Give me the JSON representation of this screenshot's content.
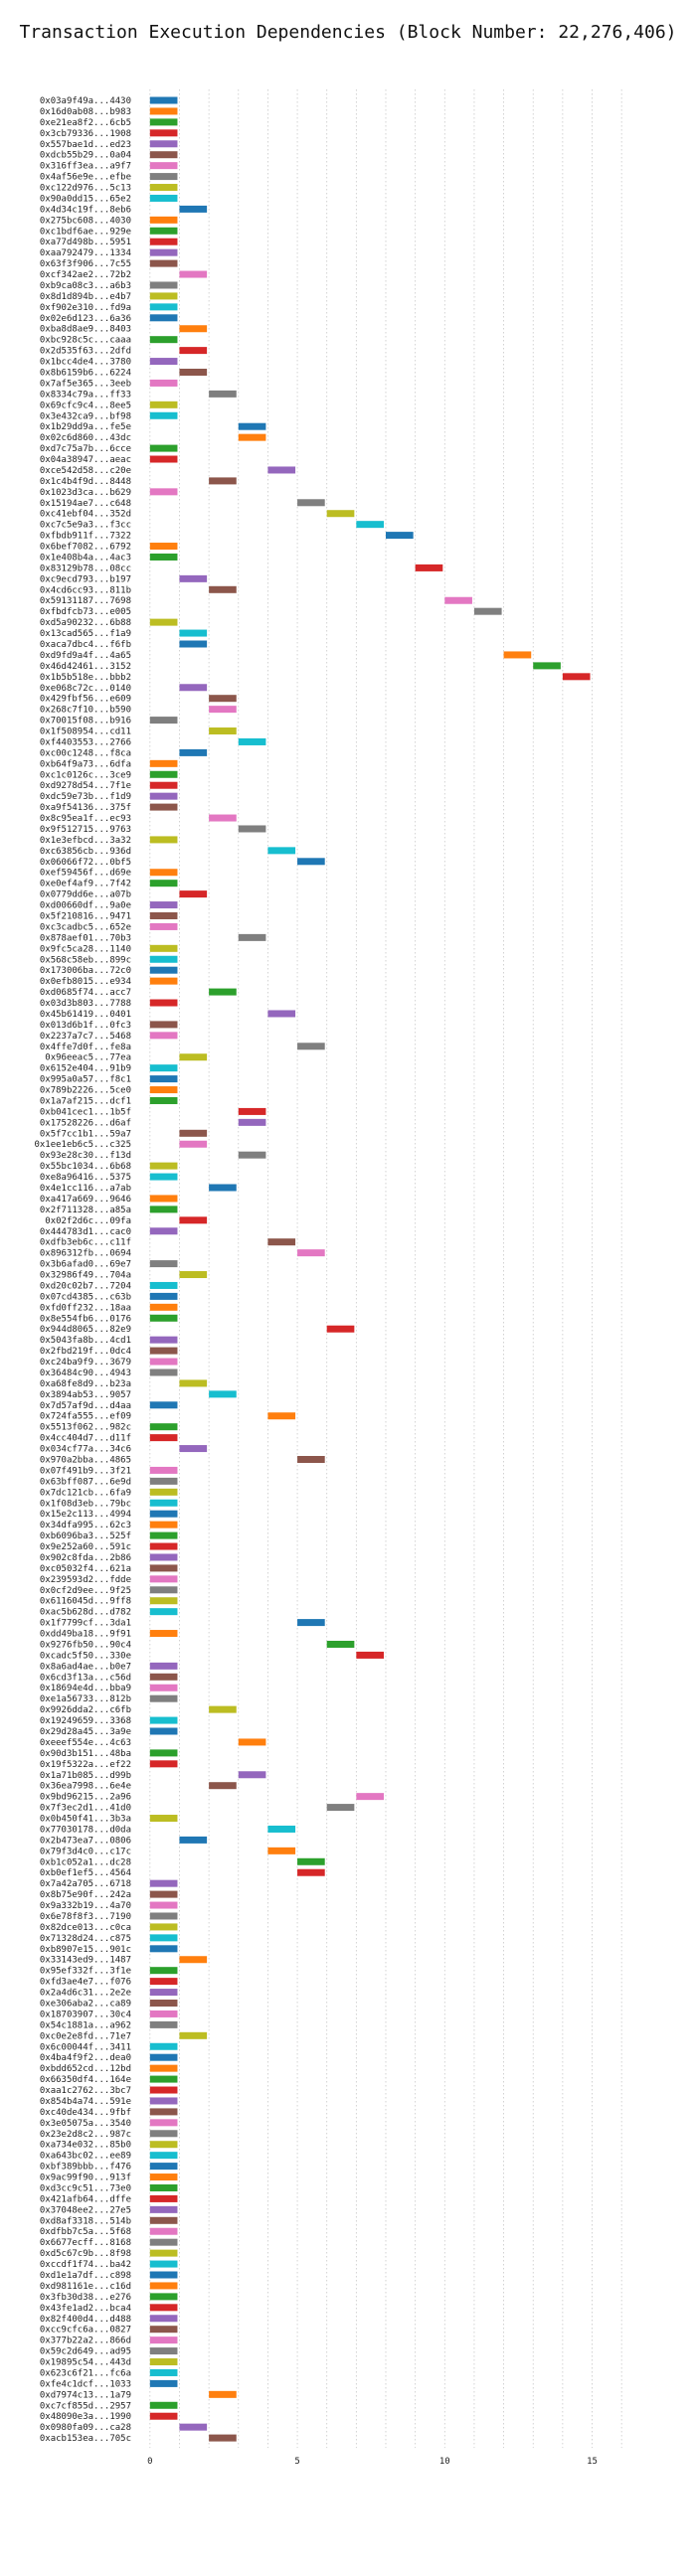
{
  "chart_data": {
    "type": "bar",
    "orientation": "horizontal",
    "title": "Transaction Execution Dependencies (Block Number: 22,276,406)",
    "xlabel": "",
    "ylabel": "",
    "xlim": [
      -0.5,
      16.5
    ],
    "xticks": [
      0,
      5,
      10,
      15
    ],
    "grid": "vertical dotted",
    "bar_width": 1,
    "palette": [
      "#1f77b4",
      "#ff7f0e",
      "#2ca02c",
      "#d62728",
      "#9467bd",
      "#8c564b",
      "#e377c2",
      "#7f7f7f",
      "#bcbd22",
      "#17becf"
    ],
    "transactions": [
      {
        "hash": "0x03a9f49a...4430",
        "start": 0
      },
      {
        "hash": "0x16d0ab08...b983",
        "start": 0
      },
      {
        "hash": "0xe21ea8f2...6cb5",
        "start": 0
      },
      {
        "hash": "0x3cb79336...1908",
        "start": 0
      },
      {
        "hash": "0x557bae1d...ed23",
        "start": 0
      },
      {
        "hash": "0xdcb55b29...0a04",
        "start": 0
      },
      {
        "hash": "0x316ff3ea...a9f7",
        "start": 0
      },
      {
        "hash": "0x4af56e9e...efbe",
        "start": 0
      },
      {
        "hash": "0xc122d976...5c13",
        "start": 0
      },
      {
        "hash": "0x90a0dd15...65e2",
        "start": 0
      },
      {
        "hash": "0x4d34c19f...8eb6",
        "start": 1
      },
      {
        "hash": "0x275bc608...4030",
        "start": 0
      },
      {
        "hash": "0xc1bdf6ae...929e",
        "start": 0
      },
      {
        "hash": "0xa77d498b...5951",
        "start": 0
      },
      {
        "hash": "0xaa792479...1334",
        "start": 0
      },
      {
        "hash": "0x63f3f906...7c55",
        "start": 0
      },
      {
        "hash": "0xcf342ae2...72b2",
        "start": 1
      },
      {
        "hash": "0xb9ca08c3...a6b3",
        "start": 0
      },
      {
        "hash": "0x8d1d894b...e4b7",
        "start": 0
      },
      {
        "hash": "0xf902e310...fd9a",
        "start": 0
      },
      {
        "hash": "0x02e6d123...6a36",
        "start": 0
      },
      {
        "hash": "0xba8d8ae9...8403",
        "start": 1
      },
      {
        "hash": "0xbc928c5c...caaa",
        "start": 0
      },
      {
        "hash": "0x2d535f63...2dfd",
        "start": 1
      },
      {
        "hash": "0x1bcc4de4...3780",
        "start": 0
      },
      {
        "hash": "0x8b6159b6...6224",
        "start": 1
      },
      {
        "hash": "0x7af5e365...3eeb",
        "start": 0
      },
      {
        "hash": "0x8334c79a...ff33",
        "start": 2
      },
      {
        "hash": "0x69cfc9c4...8ee5",
        "start": 0
      },
      {
        "hash": "0x3e432ca9...bf98",
        "start": 0
      },
      {
        "hash": "0x1b29dd9a...fe5e",
        "start": 3
      },
      {
        "hash": "0x02c6d860...43dc",
        "start": 3
      },
      {
        "hash": "0xd7c75a7b...6cce",
        "start": 0
      },
      {
        "hash": "0x04a38947...aeac",
        "start": 0
      },
      {
        "hash": "0xce542d58...c20e",
        "start": 4
      },
      {
        "hash": "0x1c4b4f9d...8448",
        "start": 2
      },
      {
        "hash": "0x1023d3ca...b629",
        "start": 0
      },
      {
        "hash": "0x15194ae7...c648",
        "start": 5
      },
      {
        "hash": "0xc41ebf04...352d",
        "start": 6
      },
      {
        "hash": "0xc7c5e9a3...f3cc",
        "start": 7
      },
      {
        "hash": "0xfbdb911f...7322",
        "start": 8
      },
      {
        "hash": "0x6bef7082...6792",
        "start": 0
      },
      {
        "hash": "0x1e408b4a...4ac3",
        "start": 0
      },
      {
        "hash": "0x83129b78...08cc",
        "start": 9
      },
      {
        "hash": "0xc9ecd793...b197",
        "start": 1
      },
      {
        "hash": "0x4cd6cc93...811b",
        "start": 2
      },
      {
        "hash": "0x59131187...7698",
        "start": 10
      },
      {
        "hash": "0xfbdfcb73...e005",
        "start": 11
      },
      {
        "hash": "0xd5a90232...6b88",
        "start": 0
      },
      {
        "hash": "0x13cad565...f1a9",
        "start": 1
      },
      {
        "hash": "0xaca7dbc4...f6fb",
        "start": 1
      },
      {
        "hash": "0xd9fd9a4f...4a65",
        "start": 12
      },
      {
        "hash": "0x46d42461...3152",
        "start": 13
      },
      {
        "hash": "0x1b5b518e...bbb2",
        "start": 14
      },
      {
        "hash": "0xe068c72c...0140",
        "start": 1
      },
      {
        "hash": "0x429fbf56...e609",
        "start": 2
      },
      {
        "hash": "0x268c7f10...b590",
        "start": 2
      },
      {
        "hash": "0x70015f08...b916",
        "start": 0
      },
      {
        "hash": "0x1f508954...cd11",
        "start": 2
      },
      {
        "hash": "0xf4403553...2766",
        "start": 3
      },
      {
        "hash": "0xc00c1248...f8ca",
        "start": 1
      },
      {
        "hash": "0xb64f9a73...6dfa",
        "start": 0
      },
      {
        "hash": "0xc1c0126c...3ce9",
        "start": 0
      },
      {
        "hash": "0xd9278d54...7f1e",
        "start": 0
      },
      {
        "hash": "0xdc59e73b...f1d9",
        "start": 0
      },
      {
        "hash": "0xa9f54136...375f",
        "start": 0
      },
      {
        "hash": "0x8c95ea1f...ec93",
        "start": 2
      },
      {
        "hash": "0x9f512715...9763",
        "start": 3
      },
      {
        "hash": "0x1e3efbcd...3a32",
        "start": 0
      },
      {
        "hash": "0xc63856cb...936d",
        "start": 4
      },
      {
        "hash": "0x06066f72...0bf5",
        "start": 5
      },
      {
        "hash": "0xef59456f...d69e",
        "start": 0
      },
      {
        "hash": "0xe0ef4af9...7f42",
        "start": 0
      },
      {
        "hash": "0x0779dd6e...a07b",
        "start": 1
      },
      {
        "hash": "0xd00660df...9a0e",
        "start": 0
      },
      {
        "hash": "0x5f210816...9471",
        "start": 0
      },
      {
        "hash": "0xc3cadbc5...652e",
        "start": 0
      },
      {
        "hash": "0x878aef01...70b3",
        "start": 3
      },
      {
        "hash": "0x9fc5ca28...1140",
        "start": 0
      },
      {
        "hash": "0x568c58eb...899c",
        "start": 0
      },
      {
        "hash": "0x173006ba...72c0",
        "start": 0
      },
      {
        "hash": "0x0efb8015...e934",
        "start": 0
      },
      {
        "hash": "0xd0685f74...acc7",
        "start": 2
      },
      {
        "hash": "0x03d3b803...7788",
        "start": 0
      },
      {
        "hash": "0x45b61419...0401",
        "start": 4
      },
      {
        "hash": "0x013d6b1f...0fc3",
        "start": 0
      },
      {
        "hash": "0x2237a7c7...5468",
        "start": 0
      },
      {
        "hash": "0x4ffe7d0f...fe8a",
        "start": 5
      },
      {
        "hash": "0x96eeac5...77ea",
        "start": 1
      },
      {
        "hash": "0x6152e404...91b9",
        "start": 0
      },
      {
        "hash": "0x995a0a57...f8c1",
        "start": 0
      },
      {
        "hash": "0x789b2226...5ce0",
        "start": 0
      },
      {
        "hash": "0x1a7af215...dcf1",
        "start": 0
      },
      {
        "hash": "0xb041cec1...1b5f",
        "start": 3
      },
      {
        "hash": "0x17528226...d6af",
        "start": 3
      },
      {
        "hash": "0x5f7cc1b1...59a7",
        "start": 1
      },
      {
        "hash": "0x1ee1eb6c5...c325",
        "start": 1
      },
      {
        "hash": "0x93e28c30...f13d",
        "start": 3
      },
      {
        "hash": "0x55bc1034...6b68",
        "start": 0
      },
      {
        "hash": "0xe8a96416...5375",
        "start": 0
      },
      {
        "hash": "0x4e1cc116...a7ab",
        "start": 2
      },
      {
        "hash": "0xa417a669...9646",
        "start": 0
      },
      {
        "hash": "0x2f711328...a85a",
        "start": 0
      },
      {
        "hash": "0x02f2d6c...09fa",
        "start": 1
      },
      {
        "hash": "0x444783d1...cac0",
        "start": 0
      },
      {
        "hash": "0xdfb3eb6c...c11f",
        "start": 4
      },
      {
        "hash": "0x896312fb...0694",
        "start": 5
      },
      {
        "hash": "0x3b6afad0...69e7",
        "start": 0
      },
      {
        "hash": "0x32986f49...704a",
        "start": 1
      },
      {
        "hash": "0xd20c02b7...7204",
        "start": 0
      },
      {
        "hash": "0x07cd4385...c63b",
        "start": 0
      },
      {
        "hash": "0xfd0ff232...18aa",
        "start": 0
      },
      {
        "hash": "0x8e554fb6...0176",
        "start": 0
      },
      {
        "hash": "0x944d8065...82e9",
        "start": 6
      },
      {
        "hash": "0x5043fa8b...4cd1",
        "start": 0
      },
      {
        "hash": "0x2fbd219f...0dc4",
        "start": 0
      },
      {
        "hash": "0xc24ba9f9...3679",
        "start": 0
      },
      {
        "hash": "0x36484c90...4943",
        "start": 0
      },
      {
        "hash": "0xa68fe8d9...b23a",
        "start": 1
      },
      {
        "hash": "0x3894ab53...9057",
        "start": 2
      },
      {
        "hash": "0x7d57af9d...d4aa",
        "start": 0
      },
      {
        "hash": "0x724fa555...ef09",
        "start": 4
      },
      {
        "hash": "0x5513f062...982c",
        "start": 0
      },
      {
        "hash": "0x4cc404d7...d11f",
        "start": 0
      },
      {
        "hash": "0x034cf77a...34c6",
        "start": 1
      },
      {
        "hash": "0x970a2bba...4865",
        "start": 5
      },
      {
        "hash": "0x07f491b9...3f21",
        "start": 0
      },
      {
        "hash": "0x63bff087...6e9d",
        "start": 0
      },
      {
        "hash": "0x7dc121cb...6fa9",
        "start": 0
      },
      {
        "hash": "0x1f08d3eb...79bc",
        "start": 0
      },
      {
        "hash": "0x15e2c113...4994",
        "start": 0
      },
      {
        "hash": "0x34dfa995...62c3",
        "start": 0
      },
      {
        "hash": "0xb6096ba3...525f",
        "start": 0
      },
      {
        "hash": "0x9e252a60...591c",
        "start": 0
      },
      {
        "hash": "0x902c8fda...2b86",
        "start": 0
      },
      {
        "hash": "0xc05032f4...621a",
        "start": 0
      },
      {
        "hash": "0x239593d2...fdde",
        "start": 0
      },
      {
        "hash": "0x0cf2d9ee...9f25",
        "start": 0
      },
      {
        "hash": "0x6116045d...9ff8",
        "start": 0
      },
      {
        "hash": "0xac5b628d...d782",
        "start": 0
      },
      {
        "hash": "0x1f7799cf...3da1",
        "start": 5
      },
      {
        "hash": "0xdd49ba18...9f91",
        "start": 0
      },
      {
        "hash": "0x9276fb50...90c4",
        "start": 6
      },
      {
        "hash": "0xcadc5f50...330e",
        "start": 7
      },
      {
        "hash": "0x8a6ad4ae...b0e7",
        "start": 0
      },
      {
        "hash": "0x6cd3f13a...c56d",
        "start": 0
      },
      {
        "hash": "0x18694e4d...bba9",
        "start": 0
      },
      {
        "hash": "0xe1a56733...812b",
        "start": 0
      },
      {
        "hash": "0x9926dda2...c6fb",
        "start": 2
      },
      {
        "hash": "0x19249659...3368",
        "start": 0
      },
      {
        "hash": "0x29d28a45...3a9e",
        "start": 0
      },
      {
        "hash": "0xeeef554e...4c63",
        "start": 3
      },
      {
        "hash": "0x90d3b151...48ba",
        "start": 0
      },
      {
        "hash": "0x19f5322a...ef22",
        "start": 0
      },
      {
        "hash": "0x1a71b085...d99b",
        "start": 3
      },
      {
        "hash": "0x36ea7998...6e4e",
        "start": 2
      },
      {
        "hash": "0x9bd96215...2a96",
        "start": 7
      },
      {
        "hash": "0x7f3ec2d1...41d0",
        "start": 6
      },
      {
        "hash": "0x0b450f41...3b3a",
        "start": 0
      },
      {
        "hash": "0x77030178...d0da",
        "start": 4
      },
      {
        "hash": "0x2b473ea7...0806",
        "start": 1
      },
      {
        "hash": "0x79f3d4c0...c17c",
        "start": 4
      },
      {
        "hash": "0xb1c052a1...dc28",
        "start": 5
      },
      {
        "hash": "0xb0ef1ef5...4564",
        "start": 5
      },
      {
        "hash": "0x7a42a705...6718",
        "start": 0
      },
      {
        "hash": "0x8b75e90f...242a",
        "start": 0
      },
      {
        "hash": "0x9a332b19...4a70",
        "start": 0
      },
      {
        "hash": "0x6e78f8f3...7190",
        "start": 0
      },
      {
        "hash": "0x82dce013...c0ca",
        "start": 0
      },
      {
        "hash": "0x71328d24...c875",
        "start": 0
      },
      {
        "hash": "0xb8907e15...901c",
        "start": 0
      },
      {
        "hash": "0x33143ed9...1487",
        "start": 1
      },
      {
        "hash": "0x95ef332f...3f1e",
        "start": 0
      },
      {
        "hash": "0xfd3ae4e7...f076",
        "start": 0
      },
      {
        "hash": "0x2a4d6c31...2e2e",
        "start": 0
      },
      {
        "hash": "0xe306aba2...ca89",
        "start": 0
      },
      {
        "hash": "0x18703907...30c4",
        "start": 0
      },
      {
        "hash": "0x54c1881a...a962",
        "start": 0
      },
      {
        "hash": "0xc0e2e8fd...71e7",
        "start": 1
      },
      {
        "hash": "0x6c00044f...3411",
        "start": 0
      },
      {
        "hash": "0x4ba4f9f2...dea0",
        "start": 0
      },
      {
        "hash": "0xbdd652cd...12bd",
        "start": 0
      },
      {
        "hash": "0x66350df4...164e",
        "start": 0
      },
      {
        "hash": "0xaa1c2762...3bc7",
        "start": 0
      },
      {
        "hash": "0x854b4a74...591e",
        "start": 0
      },
      {
        "hash": "0xc40de434...9fbf",
        "start": 0
      },
      {
        "hash": "0x3e05075a...3540",
        "start": 0
      },
      {
        "hash": "0x23e2d8c2...987c",
        "start": 0
      },
      {
        "hash": "0xa734e032...85b0",
        "start": 0
      },
      {
        "hash": "0xa643bc02...ee89",
        "start": 0
      },
      {
        "hash": "0xbf389bbb...f476",
        "start": 0
      },
      {
        "hash": "0x9ac99f90...913f",
        "start": 0
      },
      {
        "hash": "0xd3cc9c51...73e0",
        "start": 0
      },
      {
        "hash": "0x421afb64...dffe",
        "start": 0
      },
      {
        "hash": "0x37048ee2...27e5",
        "start": 0
      },
      {
        "hash": "0xd8af3318...514b",
        "start": 0
      },
      {
        "hash": "0xdfbb7c5a...5f68",
        "start": 0
      },
      {
        "hash": "0x6677ecff...8168",
        "start": 0
      },
      {
        "hash": "0xd5c67c9b...8f98",
        "start": 0
      },
      {
        "hash": "0xccdf1f74...ba42",
        "start": 0
      },
      {
        "hash": "0xd1e1a7df...c898",
        "start": 0
      },
      {
        "hash": "0xd981161e...c16d",
        "start": 0
      },
      {
        "hash": "0x3fb30d38...e276",
        "start": 0
      },
      {
        "hash": "0x43fe1ad2...bca4",
        "start": 0
      },
      {
        "hash": "0x82f400d4...d488",
        "start": 0
      },
      {
        "hash": "0xcc9cfc6a...0827",
        "start": 0
      },
      {
        "hash": "0x377b22a2...866d",
        "start": 0
      },
      {
        "hash": "0x59c2d649...ad95",
        "start": 0
      },
      {
        "hash": "0x19895c54...443d",
        "start": 0
      },
      {
        "hash": "0x623c6f21...fc6a",
        "start": 0
      },
      {
        "hash": "0xfe4c1dcf...1033",
        "start": 0
      },
      {
        "hash": "0xd7974c13...1a79",
        "start": 2
      },
      {
        "hash": "0xc7cf855d...2957",
        "start": 0
      },
      {
        "hash": "0x48090e3a...1990",
        "start": 0
      },
      {
        "hash": "0x0980fa09...ca28",
        "start": 1
      },
      {
        "hash": "0xacb153ea...705c",
        "start": 2
      }
    ]
  }
}
